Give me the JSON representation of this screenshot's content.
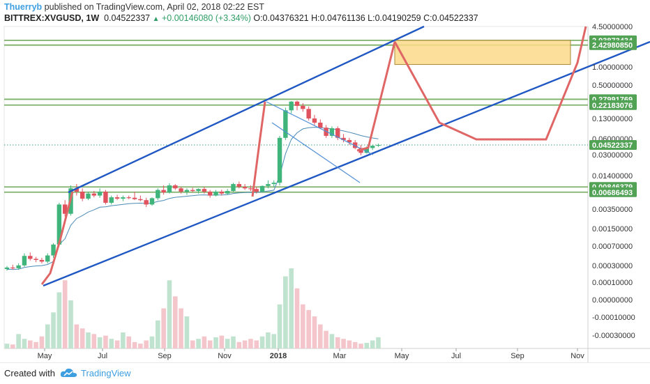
{
  "header": {
    "author": "Thuerryb",
    "published_text": " published on TradingView.com, April 02, 2018 02:22 EST",
    "symbol": "BITTREX:XVGUSD, 1W",
    "last": "0.04522337",
    "change_arrow": "▲",
    "change": "+0.00146080 (+3.34%)",
    "ohlc": " O:0.04376321 H:0.04761136 L:0.04190259 C:0.04522337"
  },
  "footer": {
    "created_label": "Created with",
    "brand": "TradingView",
    "logo_icon": "tradingview-cloud-icon"
  },
  "colors": {
    "channel": "#1f57c3",
    "wedge": "#4f8fd6",
    "hline": "#7fb069",
    "up": "#3fb57b",
    "down": "#e0525d",
    "forecast": "#e06666",
    "target_box": "#fbd98a",
    "ma": "#4b8bb5",
    "price_tag": "#51a255"
  },
  "chart_data": {
    "type": "candlestick",
    "scale": "log",
    "x_ticks": [
      "May",
      "Jul",
      "Sep",
      "Nov",
      "2018",
      "Mar",
      "May",
      "Jul",
      "Sep",
      "Nov"
    ],
    "y_ticks": [
      "4.50000000",
      "1.00000000",
      "0.50000000",
      "0.13000000",
      "0.06000000",
      "0.03000000",
      "0.01400000",
      "0.00350000",
      "0.00150000",
      "0.00070000",
      "0.00030000",
      "0.00010000",
      "0.00000000",
      "-0.00010000",
      "-0.00030000"
    ],
    "horizontal_levels": [
      "2.93873434",
      "2.42980850",
      "0.27991769",
      "0.22183076",
      "0.00846379",
      "0.00686493"
    ],
    "current_price": "0.04522337",
    "candles": [
      {
        "o": 0.00032,
        "h": 0.00036,
        "l": 0.0003,
        "c": 0.00034
      },
      {
        "o": 0.00034,
        "h": 0.00038,
        "l": 0.00031,
        "c": 0.00033
      },
      {
        "o": 0.00033,
        "h": 0.0004,
        "l": 0.00031,
        "c": 0.00037
      },
      {
        "o": 0.00037,
        "h": 0.0006,
        "l": 0.00035,
        "c": 0.00054
      },
      {
        "o": 0.00054,
        "h": 0.00062,
        "l": 0.00045,
        "c": 0.00048
      },
      {
        "o": 0.00048,
        "h": 0.00052,
        "l": 0.00042,
        "c": 0.00046
      },
      {
        "o": 0.00046,
        "h": 0.0005,
        "l": 0.0004,
        "c": 0.00043
      },
      {
        "o": 0.00043,
        "h": 0.0006,
        "l": 0.0004,
        "c": 0.00055
      },
      {
        "o": 0.00055,
        "h": 0.0009,
        "l": 0.0005,
        "c": 0.00085
      },
      {
        "o": 0.00085,
        "h": 0.0045,
        "l": 0.0008,
        "c": 0.0042
      },
      {
        "o": 0.0042,
        "h": 0.005,
        "l": 0.0026,
        "c": 0.0029
      },
      {
        "o": 0.0029,
        "h": 0.009,
        "l": 0.0027,
        "c": 0.008
      },
      {
        "o": 0.008,
        "h": 0.0095,
        "l": 0.006,
        "c": 0.007
      },
      {
        "o": 0.007,
        "h": 0.008,
        "l": 0.0048,
        "c": 0.0053
      },
      {
        "o": 0.0053,
        "h": 0.007,
        "l": 0.005,
        "c": 0.0065
      },
      {
        "o": 0.0065,
        "h": 0.0072,
        "l": 0.0056,
        "c": 0.006
      },
      {
        "o": 0.006,
        "h": 0.008,
        "l": 0.0055,
        "c": 0.007
      },
      {
        "o": 0.007,
        "h": 0.0075,
        "l": 0.0042,
        "c": 0.0045
      },
      {
        "o": 0.0045,
        "h": 0.006,
        "l": 0.0042,
        "c": 0.0056
      },
      {
        "o": 0.0056,
        "h": 0.0062,
        "l": 0.005,
        "c": 0.0053
      },
      {
        "o": 0.0053,
        "h": 0.006,
        "l": 0.0048,
        "c": 0.0056
      },
      {
        "o": 0.0056,
        "h": 0.006,
        "l": 0.0052,
        "c": 0.0055
      },
      {
        "o": 0.0055,
        "h": 0.007,
        "l": 0.005,
        "c": 0.0052
      },
      {
        "o": 0.0052,
        "h": 0.006,
        "l": 0.0048,
        "c": 0.005
      },
      {
        "o": 0.005,
        "h": 0.0055,
        "l": 0.0038,
        "c": 0.0042
      },
      {
        "o": 0.0042,
        "h": 0.0056,
        "l": 0.004,
        "c": 0.0054
      },
      {
        "o": 0.0054,
        "h": 0.008,
        "l": 0.005,
        "c": 0.0075
      },
      {
        "o": 0.0075,
        "h": 0.009,
        "l": 0.0062,
        "c": 0.0068
      },
      {
        "o": 0.0068,
        "h": 0.0098,
        "l": 0.0065,
        "c": 0.009
      },
      {
        "o": 0.009,
        "h": 0.0095,
        "l": 0.0075,
        "c": 0.008
      },
      {
        "o": 0.008,
        "h": 0.0085,
        "l": 0.0065,
        "c": 0.007
      },
      {
        "o": 0.007,
        "h": 0.008,
        "l": 0.0062,
        "c": 0.0075
      },
      {
        "o": 0.0075,
        "h": 0.0082,
        "l": 0.0068,
        "c": 0.0072
      },
      {
        "o": 0.0072,
        "h": 0.008,
        "l": 0.0065,
        "c": 0.0078
      },
      {
        "o": 0.0078,
        "h": 0.0085,
        "l": 0.0065,
        "c": 0.007
      },
      {
        "o": 0.007,
        "h": 0.0075,
        "l": 0.0055,
        "c": 0.006
      },
      {
        "o": 0.006,
        "h": 0.0075,
        "l": 0.0058,
        "c": 0.007
      },
      {
        "o": 0.007,
        "h": 0.0076,
        "l": 0.006,
        "c": 0.0065
      },
      {
        "o": 0.0065,
        "h": 0.0078,
        "l": 0.0062,
        "c": 0.0072
      },
      {
        "o": 0.0072,
        "h": 0.01,
        "l": 0.007,
        "c": 0.0095
      },
      {
        "o": 0.0095,
        "h": 0.0105,
        "l": 0.008,
        "c": 0.0085
      },
      {
        "o": 0.0085,
        "h": 0.0095,
        "l": 0.0075,
        "c": 0.008
      },
      {
        "o": 0.008,
        "h": 0.009,
        "l": 0.0072,
        "c": 0.0078
      },
      {
        "o": 0.0078,
        "h": 0.0085,
        "l": 0.0065,
        "c": 0.007
      },
      {
        "o": 0.007,
        "h": 0.009,
        "l": 0.0068,
        "c": 0.0088
      },
      {
        "o": 0.0088,
        "h": 0.011,
        "l": 0.008,
        "c": 0.0095
      },
      {
        "o": 0.0095,
        "h": 0.011,
        "l": 0.0085,
        "c": 0.01
      },
      {
        "o": 0.01,
        "h": 0.065,
        "l": 0.009,
        "c": 0.06
      },
      {
        "o": 0.06,
        "h": 0.2,
        "l": 0.055,
        "c": 0.18
      },
      {
        "o": 0.18,
        "h": 0.26,
        "l": 0.16,
        "c": 0.255
      },
      {
        "o": 0.255,
        "h": 0.265,
        "l": 0.18,
        "c": 0.215
      },
      {
        "o": 0.215,
        "h": 0.24,
        "l": 0.17,
        "c": 0.19
      },
      {
        "o": 0.19,
        "h": 0.21,
        "l": 0.12,
        "c": 0.13
      },
      {
        "o": 0.13,
        "h": 0.15,
        "l": 0.1,
        "c": 0.11
      },
      {
        "o": 0.11,
        "h": 0.125,
        "l": 0.085,
        "c": 0.09
      },
      {
        "o": 0.09,
        "h": 0.1,
        "l": 0.06,
        "c": 0.065
      },
      {
        "o": 0.065,
        "h": 0.095,
        "l": 0.06,
        "c": 0.088
      },
      {
        "o": 0.088,
        "h": 0.095,
        "l": 0.055,
        "c": 0.06
      },
      {
        "o": 0.06,
        "h": 0.07,
        "l": 0.05,
        "c": 0.055
      },
      {
        "o": 0.055,
        "h": 0.06,
        "l": 0.045,
        "c": 0.05
      },
      {
        "o": 0.05,
        "h": 0.055,
        "l": 0.038,
        "c": 0.04
      },
      {
        "o": 0.04,
        "h": 0.045,
        "l": 0.03,
        "c": 0.033
      },
      {
        "o": 0.033,
        "h": 0.043,
        "l": 0.032,
        "c": 0.04
      },
      {
        "o": 0.04,
        "h": 0.045,
        "l": 0.037,
        "c": 0.04376
      },
      {
        "o": 0.04376,
        "h": 0.04761,
        "l": 0.0419,
        "c": 0.04522
      }
    ],
    "volume": [
      0.06,
      0.05,
      0.18,
      0.12,
      0.1,
      0.08,
      0.15,
      0.3,
      0.45,
      0.7,
      0.85,
      0.6,
      0.3,
      0.25,
      0.2,
      0.18,
      0.14,
      0.16,
      0.12,
      0.1,
      0.2,
      0.15,
      0.08,
      0.06,
      0.1,
      0.15,
      0.35,
      0.5,
      0.85,
      0.65,
      0.5,
      0.4,
      0.1,
      0.12,
      0.15,
      0.1,
      0.14,
      0.16,
      0.12,
      0.15,
      0.08,
      0.1,
      0.12,
      0.1,
      0.15,
      0.2,
      0.18,
      0.55,
      0.9,
      1.0,
      0.75,
      0.55,
      0.48,
      0.4,
      0.3,
      0.22,
      0.18,
      0.14,
      0.12,
      0.1,
      0.08,
      0.06,
      0.07,
      0.1,
      0.14
    ],
    "series_names": [
      "XVGUSD"
    ]
  }
}
